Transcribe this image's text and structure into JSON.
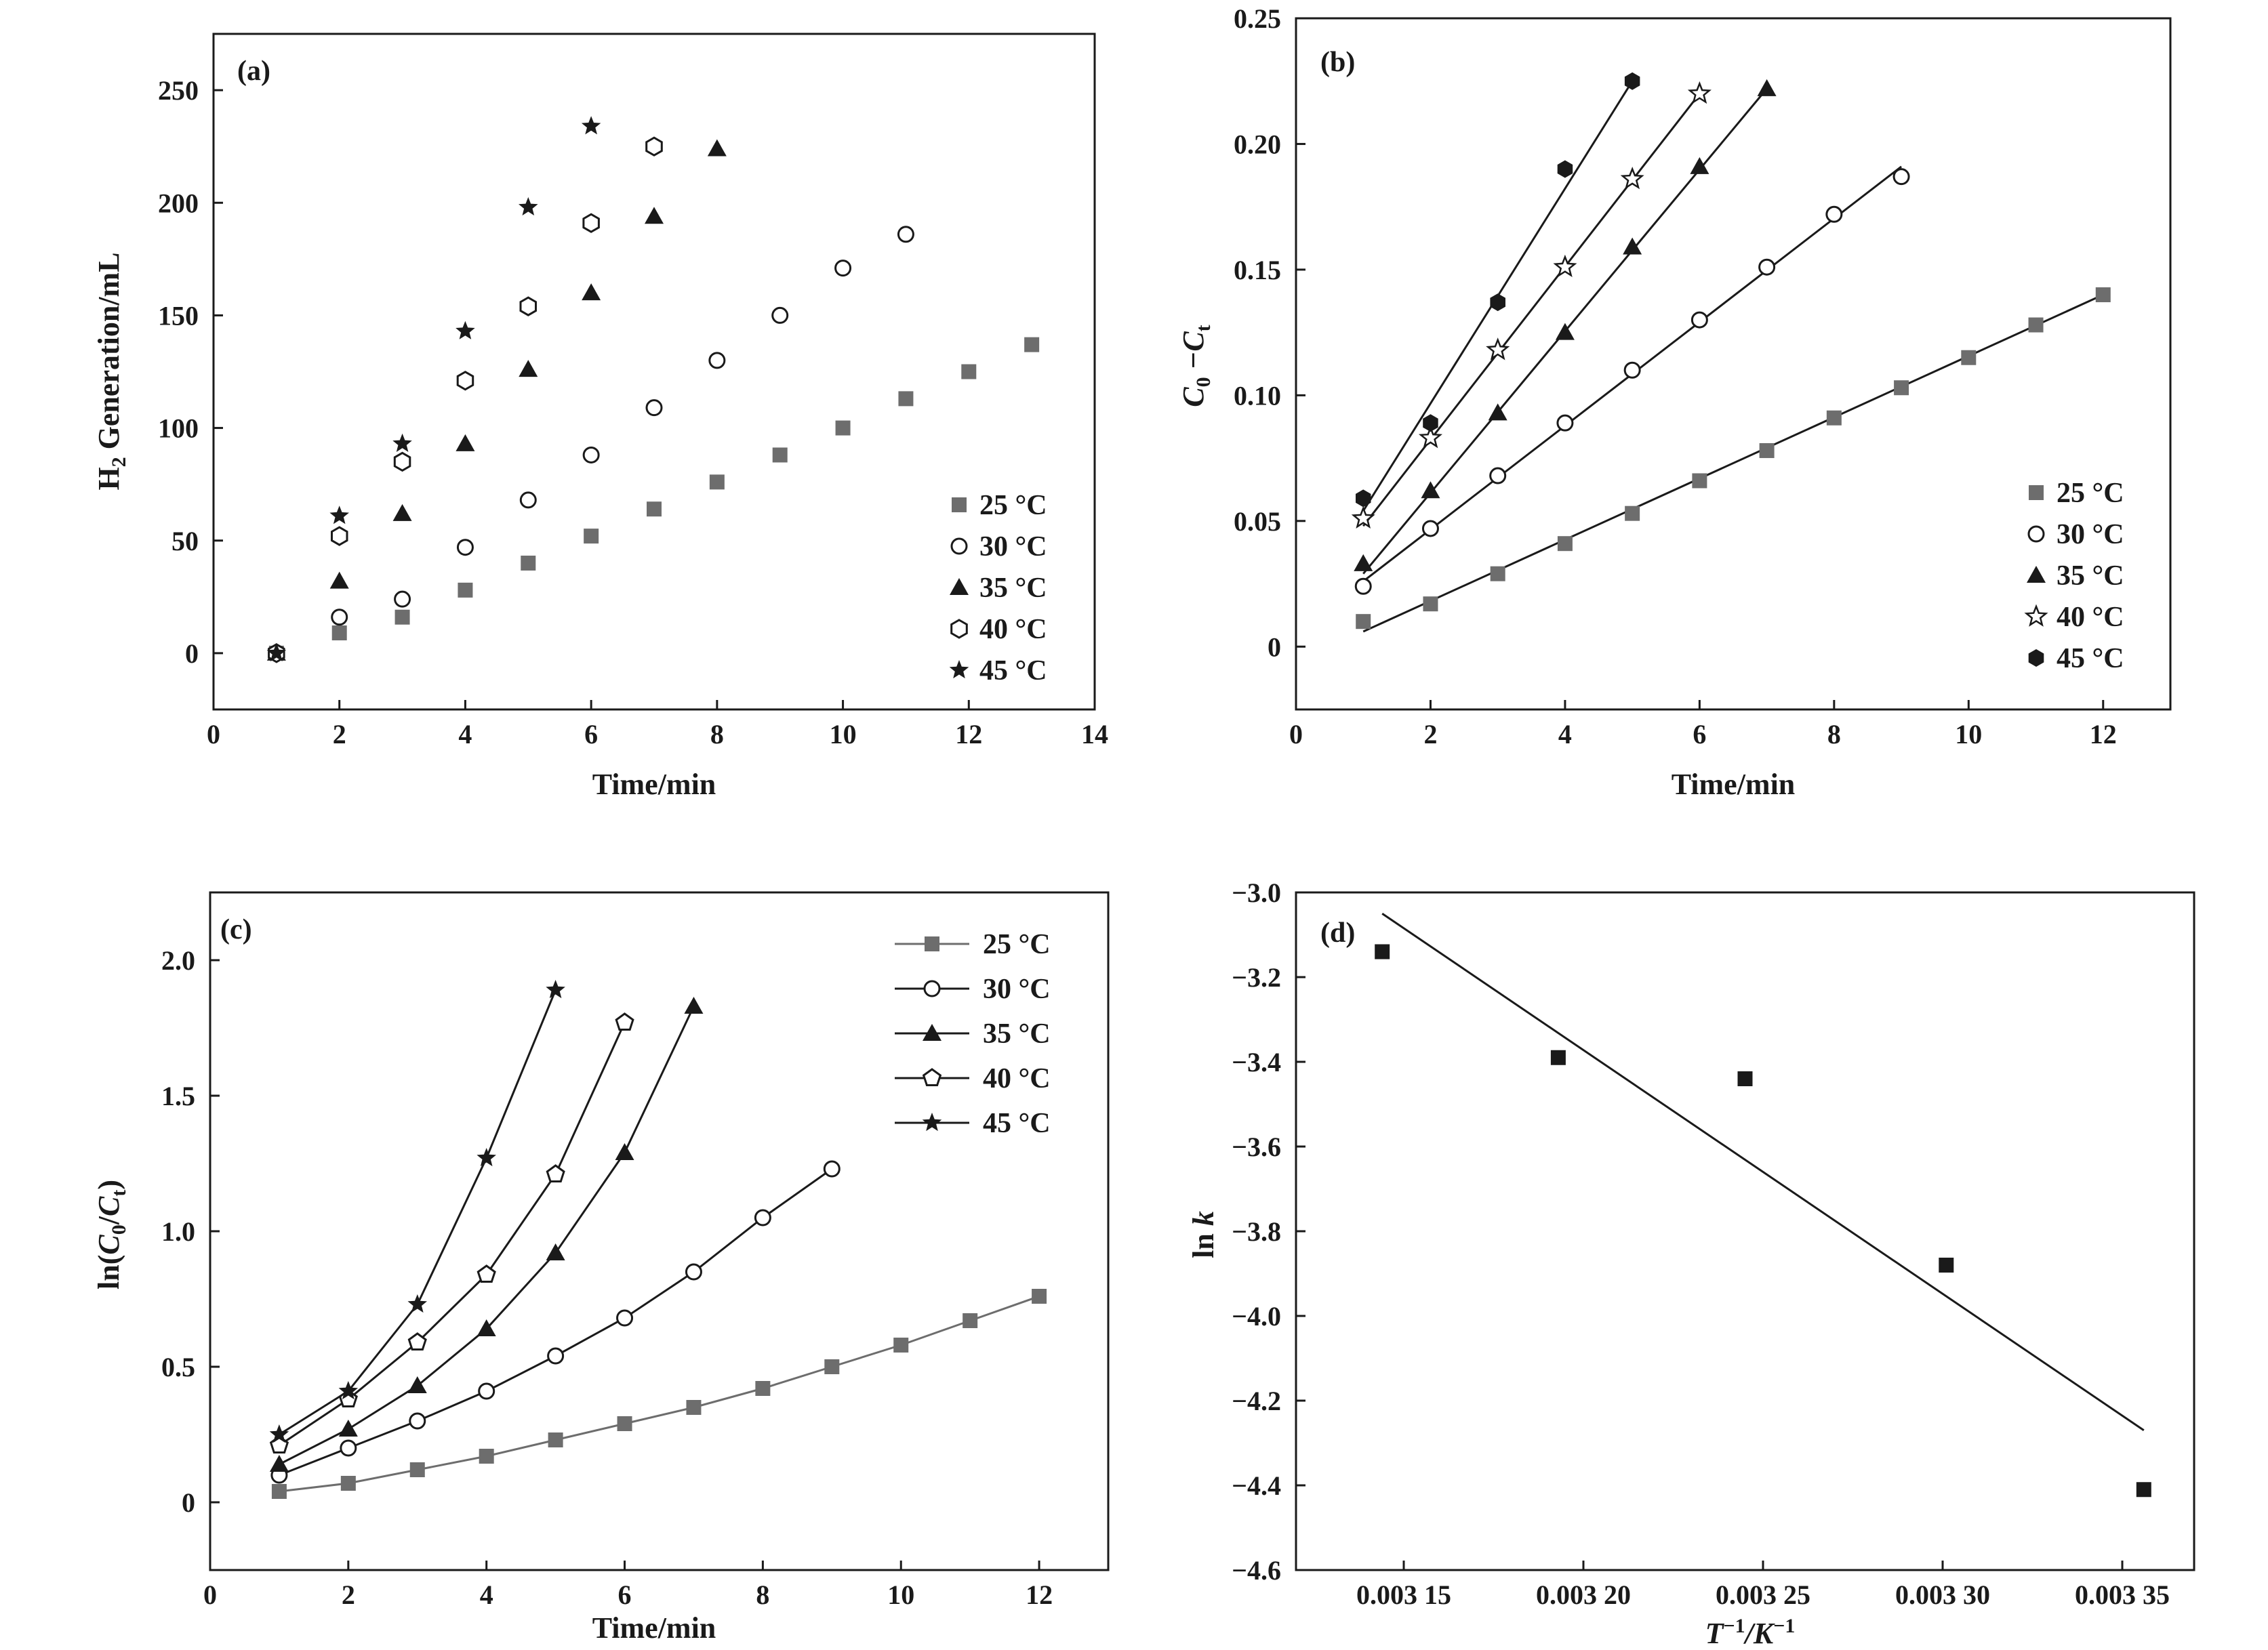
{
  "colors": {
    "gray": "#6d6d6d",
    "black": "#1a1a1a",
    "white": "#ffffff"
  },
  "chart_data": [
    {
      "panel": "(a)",
      "type": "scatter",
      "xlabel": "Time/min",
      "ylabel": {
        "main": "H",
        "sub": "2",
        "rest": " Generation/mL"
      },
      "xlim": [
        0,
        14
      ],
      "ylim": [
        -25,
        275
      ],
      "xticks": [
        "0",
        "2",
        "4",
        "6",
        "8",
        "10",
        "12",
        "14"
      ],
      "yticks": [
        "0",
        "50",
        "100",
        "150",
        "200",
        "250"
      ],
      "legend_position": "bottom-right",
      "series": [
        {
          "name": "25 °C",
          "marker": "square-gray",
          "x": [
            1,
            2,
            3,
            4,
            5,
            6,
            7,
            8,
            9,
            10,
            11,
            12,
            13
          ],
          "y": [
            0,
            9,
            16,
            28,
            40,
            52,
            64,
            76,
            88,
            100,
            113,
            125,
            137
          ]
        },
        {
          "name": "30 °C",
          "marker": "circle-open",
          "x": [
            1,
            2,
            3,
            4,
            5,
            6,
            7,
            8,
            9,
            10,
            11
          ],
          "y": [
            0,
            16,
            24,
            47,
            68,
            88,
            109,
            130,
            150,
            171,
            186
          ]
        },
        {
          "name": "35 °C",
          "marker": "triangle-filled",
          "x": [
            1,
            2,
            3,
            4,
            5,
            6,
            7,
            8
          ],
          "y": [
            0,
            32,
            62,
            93,
            126,
            160,
            194,
            224
          ]
        },
        {
          "name": "40 °C",
          "marker": "hexagon-open",
          "x": [
            1,
            2,
            3,
            4,
            5,
            6,
            7
          ],
          "y": [
            0,
            52,
            85,
            121,
            154,
            191,
            225
          ]
        },
        {
          "name": "45 °C",
          "marker": "star-filled",
          "x": [
            1,
            2,
            3,
            4,
            5,
            6
          ],
          "y": [
            0,
            61,
            93,
            143,
            198,
            234
          ]
        }
      ]
    },
    {
      "panel": "(b)",
      "type": "scatter",
      "xlabel": "Time/min",
      "ylabel": {
        "main": "C",
        "sub": "0",
        "mid": " −C",
        "sub2": "t"
      },
      "xlim": [
        0,
        13
      ],
      "ylim": [
        -0.025,
        0.25
      ],
      "xticks": [
        "0",
        "2",
        "4",
        "6",
        "8",
        "10",
        "12"
      ],
      "yticks": [
        "0",
        "0.05",
        "0.10",
        "0.15",
        "0.20",
        "0.25"
      ],
      "legend_position": "bottom-right",
      "series": [
        {
          "name": "25 °C",
          "marker": "square-gray",
          "x": [
            1,
            2,
            3,
            4,
            5,
            6,
            7,
            8,
            9,
            10,
            11,
            12
          ],
          "y": [
            0.01,
            0.017,
            0.029,
            0.041,
            0.053,
            0.066,
            0.078,
            0.091,
            0.103,
            0.115,
            0.128,
            0.14
          ],
          "fit": [
            [
              1,
              0.006
            ],
            [
              12,
              0.14
            ]
          ]
        },
        {
          "name": "30 °C",
          "marker": "circle-open",
          "x": [
            1,
            2,
            3,
            4,
            5,
            6,
            7,
            8,
            9
          ],
          "y": [
            0.024,
            0.047,
            0.068,
            0.089,
            0.11,
            0.13,
            0.151,
            0.172,
            0.187
          ],
          "fit": [
            [
              1,
              0.026
            ],
            [
              9,
              0.191
            ]
          ]
        },
        {
          "name": "35 °C",
          "marker": "triangle-filled",
          "x": [
            1,
            2,
            3,
            4,
            5,
            6,
            7
          ],
          "y": [
            0.033,
            0.062,
            0.093,
            0.125,
            0.159,
            0.191,
            0.222
          ],
          "fit": [
            [
              1,
              0.029
            ],
            [
              7,
              0.222
            ]
          ]
        },
        {
          "name": "40 °C",
          "marker": "star-open",
          "x": [
            1,
            2,
            3,
            4,
            5,
            6
          ],
          "y": [
            0.051,
            0.083,
            0.118,
            0.151,
            0.186,
            0.22
          ],
          "fit": [
            [
              1,
              0.048
            ],
            [
              6,
              0.22
            ]
          ]
        },
        {
          "name": "45 °C",
          "marker": "hexagon-filled",
          "x": [
            1,
            2,
            3,
            4,
            5
          ],
          "y": [
            0.059,
            0.089,
            0.137,
            0.19,
            0.225
          ],
          "fit": [
            [
              1,
              0.054
            ],
            [
              5,
              0.225
            ]
          ]
        }
      ]
    },
    {
      "panel": "(c)",
      "type": "line",
      "xlabel": "Time/min",
      "ylabel": {
        "pre": "ln(",
        "main": "C",
        "sub": "0",
        "mid": "/",
        "main2": "C",
        "sub2": "t",
        "post": ")"
      },
      "xlim": [
        0,
        13
      ],
      "ylim": [
        -0.25,
        2.25
      ],
      "xticks": [
        "0",
        "2",
        "4",
        "6",
        "8",
        "10",
        "12"
      ],
      "yticks": [
        "0",
        "0.5",
        "1.0",
        "1.5",
        "2.0"
      ],
      "legend_position": "top-right",
      "series": [
        {
          "name": "25 °C",
          "marker": "square-gray",
          "x": [
            1,
            2,
            3,
            4,
            5,
            6,
            7,
            8,
            9,
            10,
            11,
            12
          ],
          "y": [
            0.04,
            0.07,
            0.12,
            0.17,
            0.23,
            0.29,
            0.35,
            0.42,
            0.5,
            0.58,
            0.67,
            0.76
          ]
        },
        {
          "name": "30 °C",
          "marker": "circle-open",
          "x": [
            1,
            2,
            3,
            4,
            5,
            6,
            7,
            8,
            9
          ],
          "y": [
            0.1,
            0.2,
            0.3,
            0.41,
            0.54,
            0.68,
            0.85,
            1.05,
            1.23
          ]
        },
        {
          "name": "35 °C",
          "marker": "triangle-filled",
          "x": [
            1,
            2,
            3,
            4,
            5,
            6,
            7
          ],
          "y": [
            0.14,
            0.27,
            0.43,
            0.64,
            0.92,
            1.29,
            1.83
          ]
        },
        {
          "name": "40 °C",
          "marker": "pentagon-open",
          "x": [
            1,
            2,
            3,
            4,
            5,
            6
          ],
          "y": [
            0.21,
            0.38,
            0.59,
            0.84,
            1.21,
            1.77
          ]
        },
        {
          "name": "45 °C",
          "marker": "star-filled",
          "x": [
            1,
            2,
            3,
            4,
            5
          ],
          "y": [
            0.25,
            0.41,
            0.73,
            1.27,
            1.89
          ]
        }
      ]
    },
    {
      "panel": "(d)",
      "type": "scatter",
      "xlabel": {
        "pre": "T",
        "sup": "−1",
        "mid": "/K",
        "sup2": "−1"
      },
      "ylabel": {
        "pre": "ln ",
        "main": "k"
      },
      "xlim": [
        0.00312,
        0.00337
      ],
      "ylim": [
        -4.6,
        -3.0
      ],
      "xticks": [
        "0.003 15",
        "0.003 20",
        "0.003 25",
        "0.003 30",
        "0.003 35"
      ],
      "yticks": [
        "−3.0",
        "−3.2",
        "−3.4",
        "−3.6",
        "−3.8",
        "−4.0",
        "−4.2",
        "−4.4",
        "−4.6"
      ],
      "series": [
        {
          "name": "",
          "marker": "square-black",
          "x": [
            0.003144,
            0.003193,
            0.003245,
            0.003301,
            0.003356
          ],
          "y": [
            -3.14,
            -3.39,
            -3.44,
            -3.88,
            -4.41
          ],
          "fit": [
            [
              0.003144,
              -3.05
            ],
            [
              0.003356,
              -4.27
            ]
          ]
        }
      ]
    }
  ]
}
